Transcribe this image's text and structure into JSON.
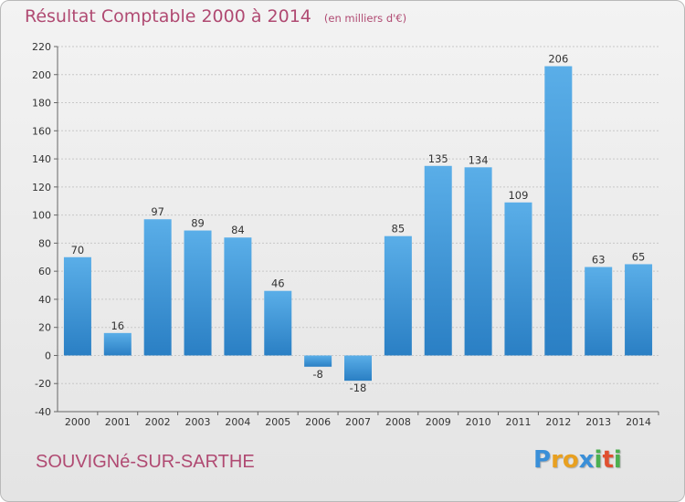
{
  "title": "Résultat Comptable 2000 à 2014",
  "subtitle": "(en milliers d'€)",
  "city": "SOUVIGNé-SUR-SARTHE",
  "logo": {
    "letters": [
      "P",
      "r",
      "o",
      "x",
      "i",
      "t",
      "i"
    ],
    "colors": [
      "#3a8fd8",
      "#e8a020",
      "#e8a020",
      "#3a8fd8",
      "#4caf50",
      "#e05030",
      "#4caf50"
    ]
  },
  "colors": {
    "bar_top": "#5aaee8",
    "bar_bottom": "#2a7fc4",
    "title": "#b04a72"
  },
  "chart_data": {
    "type": "bar",
    "title": "Résultat Comptable 2000 à 2014",
    "subtitle": "(en milliers d'€)",
    "categories": [
      "2000",
      "2001",
      "2002",
      "2003",
      "2004",
      "2005",
      "2006",
      "2007",
      "2008",
      "2009",
      "2010",
      "2011",
      "2012",
      "2013",
      "2014"
    ],
    "values": [
      70,
      16,
      97,
      89,
      84,
      46,
      -8,
      -18,
      85,
      135,
      134,
      109,
      206,
      63,
      65
    ],
    "ylim": [
      -40,
      220
    ],
    "yticks": [
      -40,
      -20,
      0,
      20,
      40,
      60,
      80,
      100,
      120,
      140,
      160,
      180,
      200,
      220
    ],
    "grid": true,
    "xlabel": "",
    "ylabel": ""
  }
}
